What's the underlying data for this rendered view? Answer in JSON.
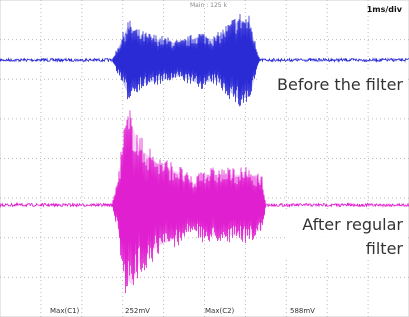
{
  "header": {
    "status": "Main : 125 k",
    "timebase": "1ms/div"
  },
  "traces": [
    {
      "label": "Before the filter"
    },
    {
      "label_lines": [
        "After regular",
        "filter"
      ]
    }
  ],
  "measurements": [
    {
      "name": "Max(C1)",
      "value": "252mV"
    },
    {
      "name": "Max(C2)",
      "value": "588mV"
    }
  ]
}
